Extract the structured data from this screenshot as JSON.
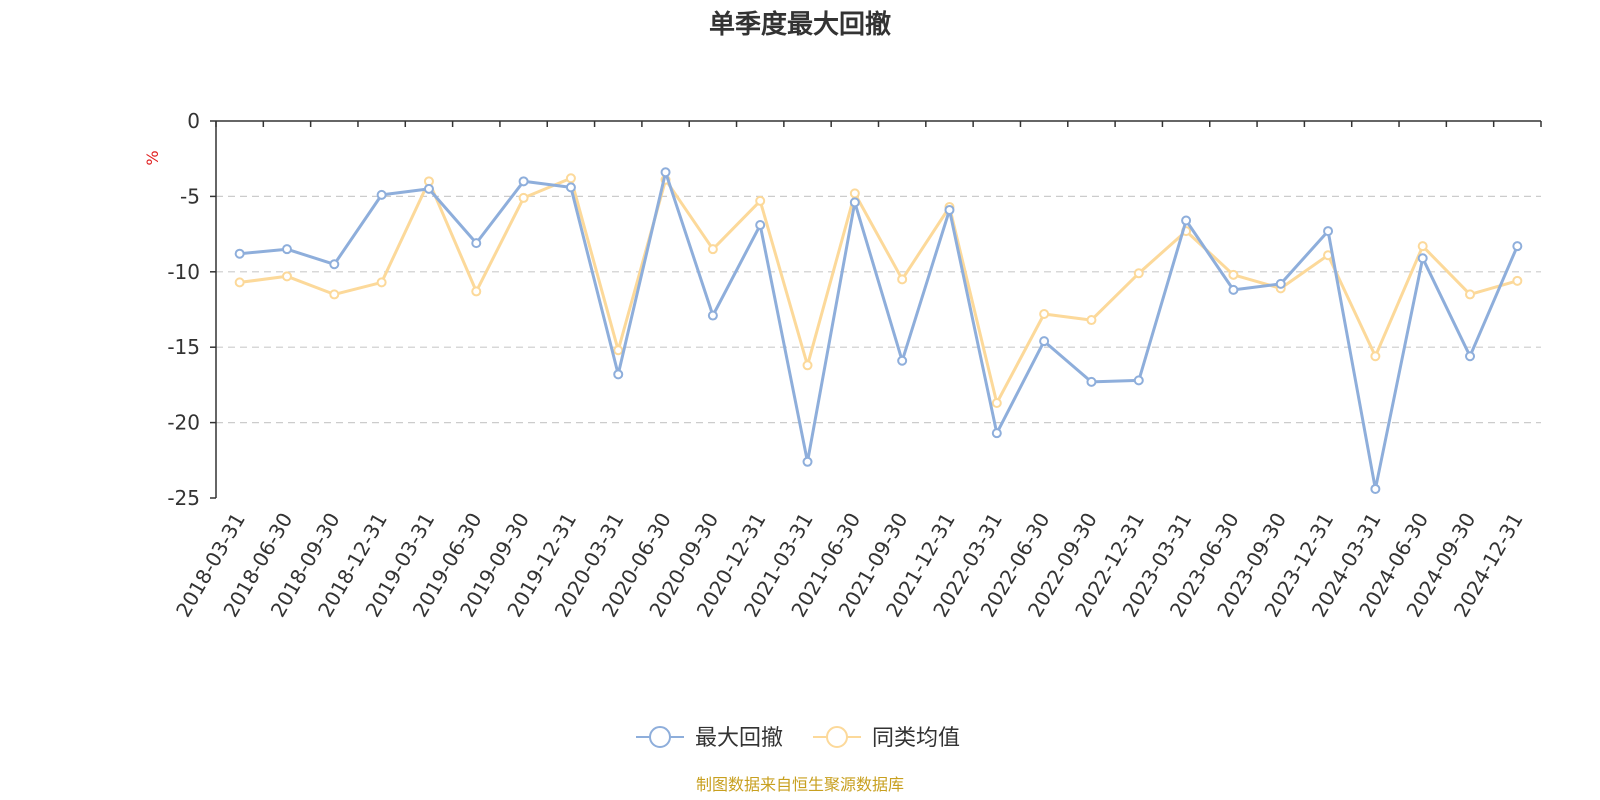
{
  "chart_data": {
    "type": "line",
    "title": "单季度最大回撤",
    "ylabel": "%",
    "ylim": [
      -25,
      0
    ],
    "yticks": [
      0,
      -5,
      -10,
      -15,
      -20,
      -25
    ],
    "ytick_labels": [
      "0",
      "-5",
      "-10",
      "-15",
      "-20",
      "-25"
    ],
    "grid": true,
    "legend_position": "bottom-center",
    "categories": [
      "2018-03-31",
      "2018-06-30",
      "2018-09-30",
      "2018-12-31",
      "2019-03-31",
      "2019-06-30",
      "2019-09-30",
      "2019-12-31",
      "2020-03-31",
      "2020-06-30",
      "2020-09-30",
      "2020-12-31",
      "2021-03-31",
      "2021-06-30",
      "2021-09-30",
      "2021-12-31",
      "2022-03-31",
      "2022-06-30",
      "2022-09-30",
      "2022-12-31",
      "2023-03-31",
      "2023-06-30",
      "2023-09-30",
      "2023-12-31",
      "2024-03-31",
      "2024-06-30",
      "2024-09-30",
      "2024-12-31"
    ],
    "series": [
      {
        "name": "最大回撤",
        "color": "#8eaedb",
        "values": [
          -8.8,
          -8.5,
          -9.5,
          -4.9,
          -4.5,
          -8.1,
          -4.0,
          -4.4,
          -16.8,
          -3.4,
          -12.9,
          -6.9,
          -22.6,
          -5.4,
          -15.9,
          -5.9,
          -20.7,
          -14.6,
          -17.3,
          -17.2,
          -6.6,
          -11.2,
          -10.8,
          -7.3,
          -24.4,
          -9.1,
          -15.6,
          -8.3
        ]
      },
      {
        "name": "同类均值",
        "color": "#fcd99a",
        "values": [
          -10.7,
          -10.3,
          -11.5,
          -10.7,
          -4.0,
          -11.3,
          -5.1,
          -3.8,
          -15.2,
          -3.9,
          -8.5,
          -5.3,
          -16.2,
          -4.8,
          -10.5,
          -5.7,
          -18.7,
          -12.8,
          -13.2,
          -10.1,
          -7.3,
          -10.2,
          -11.1,
          -8.9,
          -15.6,
          -8.3,
          -11.5,
          -10.6
        ]
      }
    ]
  },
  "legend": {
    "items": [
      "最大回撤",
      "同类均值"
    ]
  },
  "footer": {
    "source": "制图数据来自恒生聚源数据库"
  },
  "colors": {
    "axis": "#333333",
    "grid": "#cccccc",
    "unit": "#e02020",
    "source": "#c8a020"
  }
}
